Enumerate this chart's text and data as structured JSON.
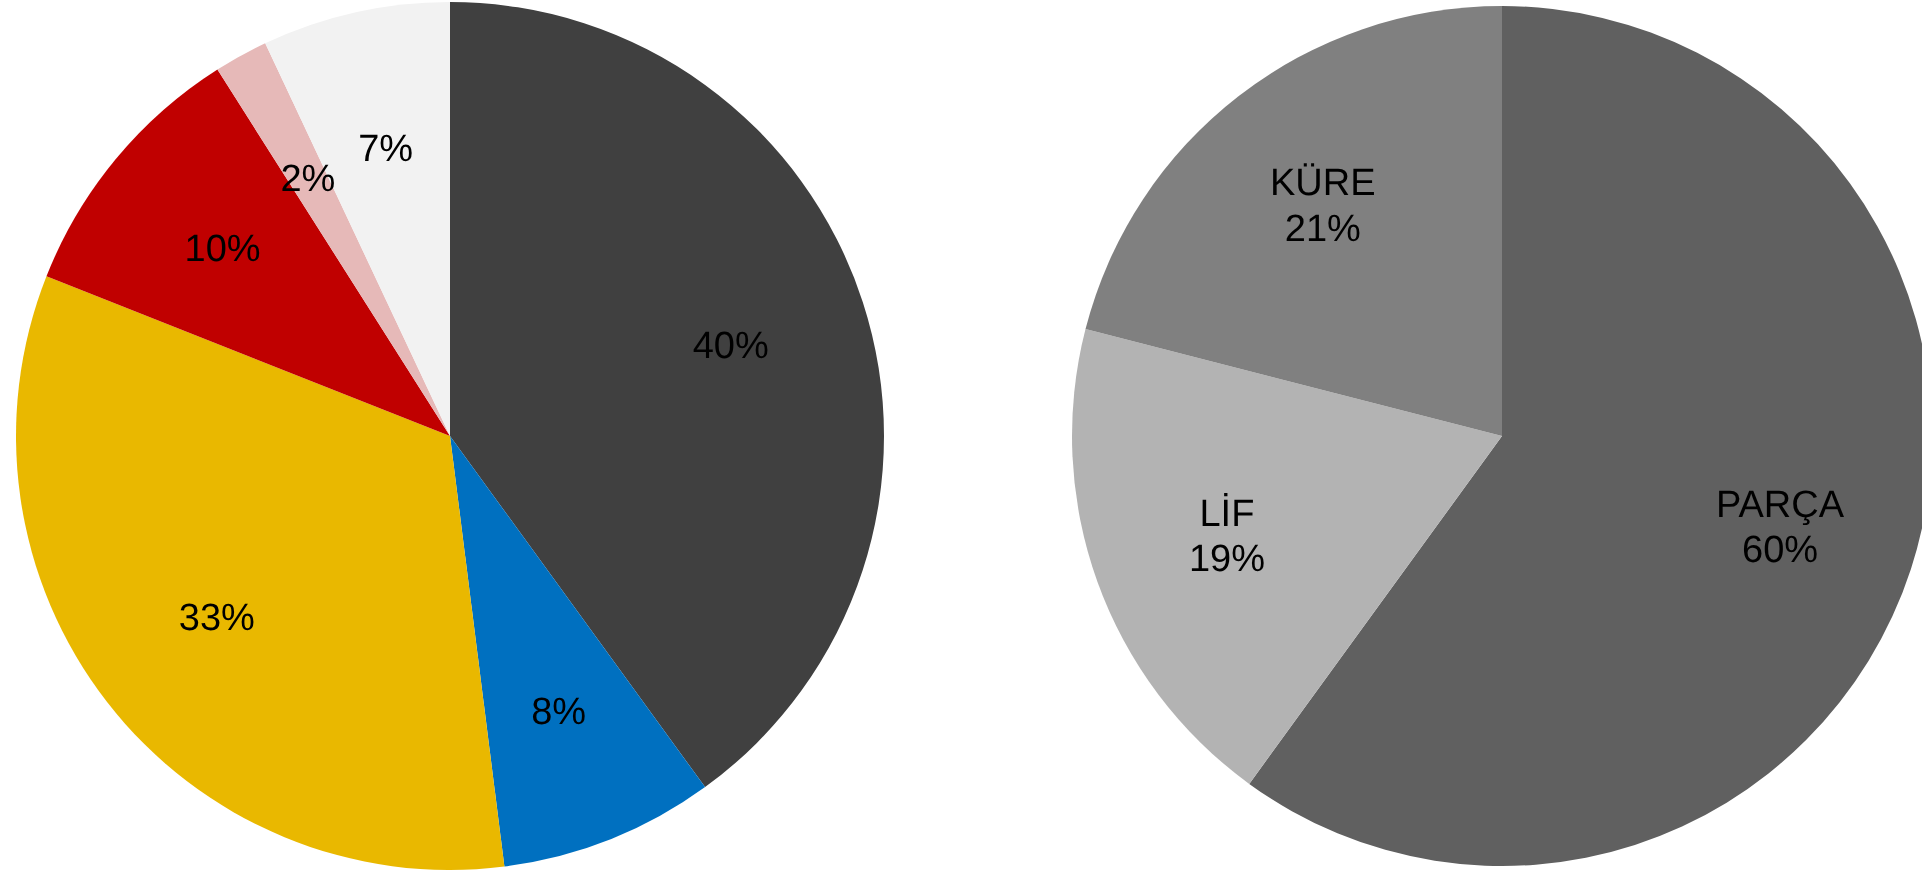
{
  "chart_data": [
    {
      "type": "pie",
      "categories": [
        null,
        null,
        null,
        null,
        null,
        null
      ],
      "values": [
        40,
        8,
        33,
        10,
        2,
        7
      ],
      "colors": [
        "#404040",
        "#0070c0",
        "#e9b800",
        "#c00000",
        "#e6b9b8",
        "#f2f2f2"
      ],
      "value_labels": [
        "40%",
        "8%",
        "33%",
        "10%",
        "2%",
        "7%"
      ]
    },
    {
      "type": "pie",
      "categories": [
        "PARÇA",
        "LİF",
        "KÜRE"
      ],
      "values": [
        60,
        19,
        21
      ],
      "colors": [
        "#606060",
        "#b3b3b3",
        "#808080"
      ],
      "value_labels": [
        "60%",
        "19%",
        "21%"
      ]
    }
  ]
}
